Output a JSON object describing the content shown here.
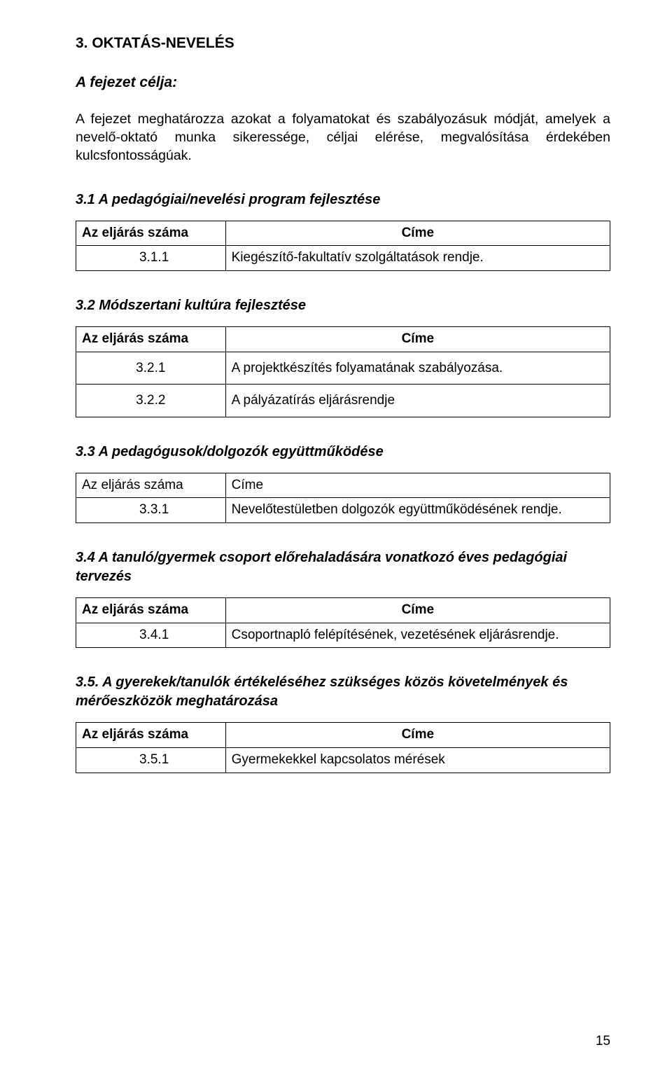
{
  "title": "3. OKTATÁS-NEVELÉS",
  "subtitle": "A fejezet célja:",
  "intro": "A fejezet meghatározza azokat a folyamatokat és szabályozásuk módját, amelyek a nevelő-oktató munka sikeressége, céljai elérése, megvalósítása érdekében kulcsfontosságúak.",
  "sections": {
    "s31": {
      "heading": "3.1  A pedagógiai/nevelési program fejlesztése",
      "header": {
        "c1": "Az eljárás száma",
        "c2": "Címe"
      },
      "rows": [
        {
          "num": "3.1.1",
          "text": "Kiegészítő-fakultatív szolgáltatások rendje."
        }
      ]
    },
    "s32": {
      "heading": "3.2   Módszertani kultúra fejlesztése",
      "header": {
        "c1": "Az eljárás száma",
        "c2": "Címe"
      },
      "rows": [
        {
          "num": "3.2.1",
          "text": "A projektkészítés folyamatának szabályozása."
        },
        {
          "num": "3.2.2",
          "text": "A pályázatírás eljárásrendje"
        }
      ]
    },
    "s33": {
      "heading": "3.3  A pedagógusok/dolgozók együttműködése",
      "header": {
        "c1": "Az eljárás száma",
        "c2": "Címe"
      },
      "rows": [
        {
          "num": "3.3.1",
          "text": "Nevelőtestületben dolgozók együttműködésének rendje."
        }
      ]
    },
    "s34": {
      "heading": "3.4   A tanuló/gyermek csoport előrehaladására vonatkozó éves pedagógiai tervezés",
      "header": {
        "c1": "Az eljárás száma",
        "c2": "Címe"
      },
      "rows": [
        {
          "num": "3.4.1",
          "text": "Csoportnapló felépítésének, vezetésének eljárásrendje."
        }
      ]
    },
    "s35": {
      "heading": "3.5.   A gyerekek/tanulók értékeléséhez szükséges közös követelmények és mérőeszközök meghatározása",
      "header": {
        "c1": "Az eljárás száma",
        "c2": "Címe"
      },
      "rows": [
        {
          "num": "3.5.1",
          "text": "Gyermekekkel kapcsolatos mérések"
        }
      ]
    }
  },
  "pageNumber": "15",
  "colors": {
    "text": "#000000",
    "background": "#ffffff",
    "border": "#000000"
  },
  "fonts": {
    "body_pt": 19,
    "heading_pt": 21,
    "family": "Arial"
  }
}
